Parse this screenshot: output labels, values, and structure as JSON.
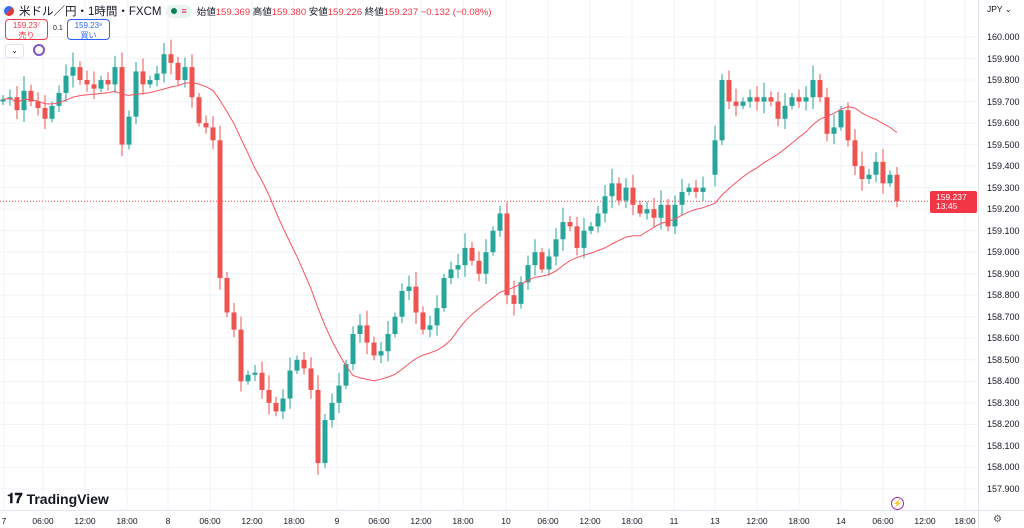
{
  "header": {
    "symbol": "米ドル／円・1時間・FXCM",
    "open_label": "始値",
    "open": "159.369",
    "high_label": "高値",
    "high": "159.380",
    "low_label": "安値",
    "low": "159.226",
    "close_label": "終値",
    "close": "159.237",
    "change": "−0.132 (−0.08%)"
  },
  "trade": {
    "sell_price": "159.23⁷",
    "sell_label": "売り",
    "spread": "0.1",
    "buy_price": "159.23⁸",
    "buy_label": "買い",
    "collapse_icon": "chevron-down-icon"
  },
  "logo": "TradingView",
  "currency": "JPY",
  "current_price": {
    "price": "159.237",
    "countdown": "13:45"
  },
  "colors": {
    "up": "#26a69a",
    "down": "#ef5350",
    "ma": "#f7525f",
    "accent": "#2962ff"
  },
  "chart_data": {
    "type": "candlestick",
    "ylim": [
      157.86,
      160.1
    ],
    "price_ticks": [
      "160.000",
      "159.900",
      "159.800",
      "159.700",
      "159.600",
      "159.500",
      "159.400",
      "159.300",
      "159.200",
      "159.100",
      "159.000",
      "158.900",
      "158.800",
      "158.700",
      "158.600",
      "158.500",
      "158.400",
      "158.300",
      "158.200",
      "158.100",
      "158.000",
      "157.900"
    ],
    "time_labels": [
      "7",
      "06:00",
      "12:00",
      "18:00",
      "8",
      "06:00",
      "12:00",
      "18:00",
      "9",
      "06:00",
      "12:00",
      "18:00",
      "10",
      "06:00",
      "12:00",
      "18:00",
      "11",
      "13",
      "12:00",
      "18:00",
      "14",
      "06:00",
      "12:00",
      "18:00"
    ],
    "ma_period": 20,
    "closes": [
      159.71,
      159.72,
      159.66,
      159.75,
      159.7,
      159.67,
      159.62,
      159.68,
      159.74,
      159.82,
      159.86,
      159.8,
      159.78,
      159.76,
      159.8,
      159.78,
      159.86,
      159.5,
      159.63,
      159.84,
      159.78,
      159.8,
      159.83,
      159.92,
      159.88,
      159.8,
      159.86,
      159.72,
      159.6,
      159.58,
      159.52,
      158.88,
      158.72,
      158.64,
      158.4,
      158.43,
      158.44,
      158.36,
      158.3,
      158.26,
      158.32,
      158.45,
      158.5,
      158.46,
      158.36,
      158.02,
      158.22,
      158.3,
      158.38,
      158.48,
      158.62,
      158.66,
      158.58,
      158.52,
      158.54,
      158.62,
      158.7,
      158.82,
      158.84,
      158.72,
      158.64,
      158.66,
      158.74,
      158.88,
      158.92,
      158.94,
      159.02,
      158.96,
      158.9,
      159.0,
      159.1,
      159.18,
      158.8,
      158.76,
      158.86,
      158.94,
      159.0,
      158.92,
      158.98,
      159.06,
      159.14,
      159.12,
      159.02,
      159.1,
      159.12,
      159.18,
      159.26,
      159.32,
      159.24,
      159.3,
      159.22,
      159.18,
      159.2,
      159.16,
      159.22,
      159.12,
      159.22,
      159.28,
      159.3,
      159.28,
      159.3,
      159.52,
      159.8,
      159.7,
      159.68,
      159.7,
      159.72,
      159.7,
      159.72,
      159.7,
      159.62,
      159.68,
      159.72,
      159.7,
      159.72,
      159.8,
      159.72,
      159.55,
      159.58,
      159.66,
      159.52,
      159.4,
      159.34,
      159.36,
      159.42,
      159.32,
      159.36,
      159.237
    ]
  }
}
